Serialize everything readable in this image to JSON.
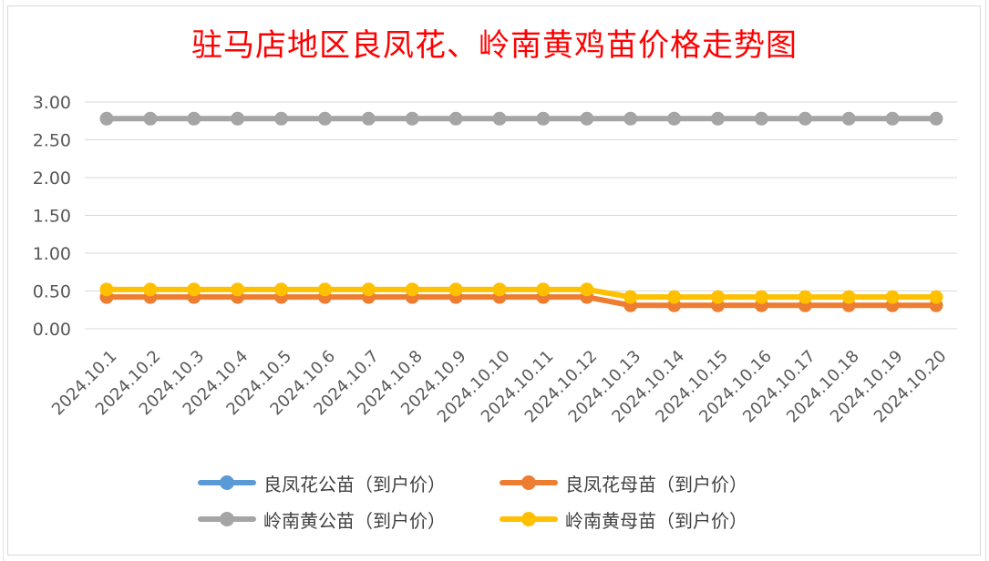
{
  "chart_data": {
    "type": "line",
    "title": "驻马店地区良凤花、岭南黄鸡苗价格走势图",
    "categories": [
      "2024.10.1",
      "2024.10.2",
      "2024.10.3",
      "2024.10.4",
      "2024.10.5",
      "2024.10.6",
      "2024.10.7",
      "2024.10.8",
      "2024.10.9",
      "2024.10.10",
      "2024.10.11",
      "2024.10.12",
      "2024.10.13",
      "2024.10.14",
      "2024.10.15",
      "2024.10.16",
      "2024.10.17",
      "2024.10.18",
      "2024.10.19",
      "2024.10.20"
    ],
    "yticks": [
      "0.00",
      "0.50",
      "1.00",
      "1.50",
      "2.00",
      "2.50",
      "3.00"
    ],
    "ylim": [
      0,
      3
    ],
    "grid": true,
    "legend_position": "bottom",
    "series": [
      {
        "name": "良凤花公苗（到户价）",
        "color": "#5b9bd5",
        "values": [
          null,
          null,
          null,
          null,
          null,
          null,
          null,
          null,
          null,
          null,
          null,
          null,
          null,
          null,
          null,
          null,
          null,
          null,
          null,
          null
        ]
      },
      {
        "name": "良凤花母苗（到户价）",
        "color": "#ed7d31",
        "values": [
          0.42,
          0.42,
          0.42,
          0.42,
          0.42,
          0.42,
          0.42,
          0.42,
          0.42,
          0.42,
          0.42,
          0.42,
          0.31,
          0.31,
          0.31,
          0.31,
          0.31,
          0.31,
          0.31,
          0.31
        ]
      },
      {
        "name": "岭南黄公苗（到户价）",
        "color": "#a5a5a5",
        "values": [
          2.78,
          2.78,
          2.78,
          2.78,
          2.78,
          2.78,
          2.78,
          2.78,
          2.78,
          2.78,
          2.78,
          2.78,
          2.78,
          2.78,
          2.78,
          2.78,
          2.78,
          2.78,
          2.78,
          2.78
        ]
      },
      {
        "name": "岭南黄母苗（到户价）",
        "color": "#ffc000",
        "values": [
          0.52,
          0.52,
          0.52,
          0.52,
          0.52,
          0.52,
          0.52,
          0.52,
          0.52,
          0.52,
          0.52,
          0.52,
          0.42,
          0.42,
          0.42,
          0.42,
          0.42,
          0.42,
          0.42,
          0.42
        ]
      }
    ]
  }
}
